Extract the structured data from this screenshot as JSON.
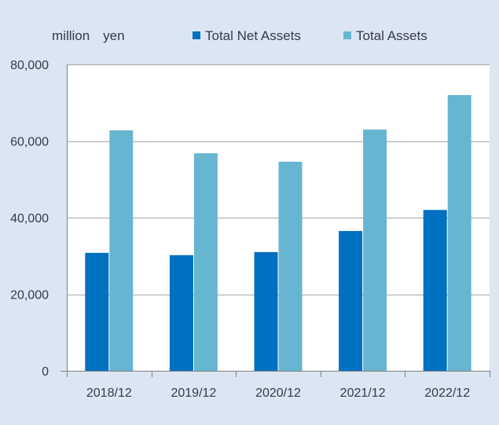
{
  "chart_data": {
    "type": "bar",
    "unit_label": "million　yen",
    "categories": [
      "2018/12",
      "2019/12",
      "2020/12",
      "2021/12",
      "2022/12"
    ],
    "series": [
      {
        "name": "Total Net Assets",
        "color": "#0070c0",
        "values": [
          30800,
          30200,
          31000,
          36500,
          42000
        ]
      },
      {
        "name": "Total Assets",
        "color": "#67b6d1",
        "values": [
          62800,
          56800,
          54600,
          63000,
          72000
        ]
      }
    ],
    "ylim": [
      0,
      80000
    ],
    "yticks": [
      0,
      20000,
      40000,
      60000,
      80000
    ],
    "ytick_labels": [
      "0",
      "20,000",
      "40,000",
      "60,000",
      "80,000"
    ],
    "grid": true,
    "legend_position": "top",
    "colors": {
      "background": "#dce6f2",
      "plot_background": "#ffffff",
      "gridline": "#a6a6a6"
    }
  }
}
